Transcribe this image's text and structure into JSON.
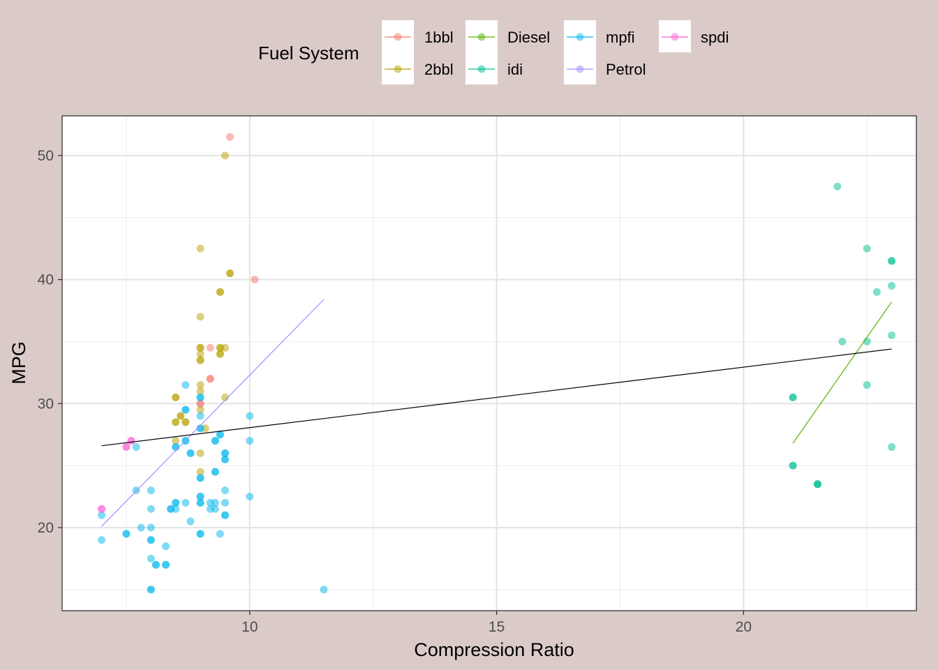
{
  "chart_data": {
    "type": "scatter",
    "xlabel": "Compression Ratio",
    "ylabel": "MPG",
    "xlim": [
      6.2,
      23.5
    ],
    "ylim": [
      13.3,
      53.2
    ],
    "xticks": [
      10,
      15,
      20
    ],
    "yticks": [
      20,
      30,
      40,
      50
    ],
    "grid": true,
    "legend": {
      "title": "Fuel System",
      "placement": "top",
      "entries": [
        {
          "label": "1bbl",
          "color": "#F8766D",
          "marker": "point+line"
        },
        {
          "label": "2bbl",
          "color": "#B79F00",
          "marker": "point+line"
        },
        {
          "label": "Diesel",
          "color": "#53B400",
          "marker": "point+line"
        },
        {
          "label": "idi",
          "color": "#00C094",
          "marker": "point+line"
        },
        {
          "label": "mpfi",
          "color": "#00B6EB",
          "marker": "point+line"
        },
        {
          "label": "Petrol",
          "color": "#A58AFF",
          "marker": "point+line"
        },
        {
          "label": "spdi",
          "color": "#FB61D7",
          "marker": "point+line"
        }
      ]
    },
    "series": [
      {
        "name": "1bbl",
        "color": "#F8766D",
        "points": [
          [
            9.6,
            51.5
          ],
          [
            10.1,
            40
          ],
          [
            9.2,
            34.5
          ],
          [
            9.2,
            32
          ],
          [
            9.2,
            32
          ],
          [
            9.0,
            30
          ],
          [
            9.0,
            30
          ]
        ]
      },
      {
        "name": "2bbl",
        "color": "#B79F00",
        "points": [
          [
            9.5,
            50
          ],
          [
            9.0,
            42.5
          ],
          [
            9.6,
            40.5
          ],
          [
            9.6,
            40.5
          ],
          [
            9.4,
            39
          ],
          [
            9.4,
            39
          ],
          [
            9.0,
            37
          ],
          [
            9.0,
            34.5
          ],
          [
            9.0,
            34.5
          ],
          [
            9.4,
            34.5
          ],
          [
            9.5,
            34.5
          ],
          [
            9.4,
            34.5
          ],
          [
            9.0,
            34
          ],
          [
            9.4,
            34
          ],
          [
            9.4,
            34
          ],
          [
            9.0,
            33.5
          ],
          [
            9.0,
            33.5
          ],
          [
            9.0,
            31.5
          ],
          [
            9.0,
            31
          ],
          [
            8.5,
            30.5
          ],
          [
            8.5,
            30.5
          ],
          [
            9.5,
            30.5
          ],
          [
            9.0,
            29.5
          ],
          [
            8.6,
            29
          ],
          [
            8.6,
            29
          ],
          [
            8.5,
            28.5
          ],
          [
            8.5,
            28.5
          ],
          [
            8.7,
            28.5
          ],
          [
            8.7,
            28.5
          ],
          [
            9.1,
            28
          ],
          [
            8.5,
            27
          ],
          [
            9.0,
            26
          ],
          [
            9.0,
            24.5
          ]
        ]
      },
      {
        "name": "idi",
        "color": "#00C094",
        "points": [
          [
            21.9,
            47.5
          ],
          [
            22.5,
            42.5
          ],
          [
            23.0,
            41.5
          ],
          [
            23.0,
            41.5
          ],
          [
            23.0,
            39.5
          ],
          [
            22.7,
            39
          ],
          [
            23.0,
            35.5
          ],
          [
            22.0,
            35
          ],
          [
            22.5,
            35
          ],
          [
            22.5,
            31.5
          ],
          [
            21.0,
            30.5
          ],
          [
            21.0,
            30.5
          ],
          [
            23.0,
            26.5
          ],
          [
            21.0,
            25
          ],
          [
            21.0,
            25
          ],
          [
            21.5,
            23.5
          ],
          [
            21.5,
            23.5
          ],
          [
            21.5,
            23.5
          ]
        ]
      },
      {
        "name": "mpfi",
        "color": "#00B6EB",
        "points": [
          [
            8.7,
            31.5
          ],
          [
            8.7,
            29.5
          ],
          [
            8.7,
            29.5
          ],
          [
            9.0,
            30.5
          ],
          [
            9.0,
            30.5
          ],
          [
            9.0,
            29
          ],
          [
            10.0,
            29
          ],
          [
            9.0,
            28
          ],
          [
            9.0,
            28
          ],
          [
            9.4,
            27.5
          ],
          [
            9.4,
            27.5
          ],
          [
            9.3,
            27
          ],
          [
            9.3,
            27
          ],
          [
            8.7,
            27
          ],
          [
            8.7,
            27
          ],
          [
            10.0,
            27
          ],
          [
            7.7,
            26.5
          ],
          [
            8.5,
            26.5
          ],
          [
            8.5,
            26.5
          ],
          [
            8.8,
            26
          ],
          [
            8.8,
            26
          ],
          [
            9.5,
            26
          ],
          [
            9.5,
            26
          ],
          [
            9.5,
            25.5
          ],
          [
            9.5,
            25.5
          ],
          [
            9.3,
            24.5
          ],
          [
            9.3,
            24.5
          ],
          [
            9.0,
            24
          ],
          [
            9.0,
            24
          ],
          [
            7.7,
            23
          ],
          [
            8.0,
            23
          ],
          [
            9.5,
            23
          ],
          [
            9.0,
            22.5
          ],
          [
            9.0,
            22.5
          ],
          [
            10.0,
            22.5
          ],
          [
            8.5,
            22
          ],
          [
            8.5,
            22
          ],
          [
            8.7,
            22
          ],
          [
            9.0,
            22
          ],
          [
            9.0,
            22
          ],
          [
            9.2,
            22
          ],
          [
            9.3,
            22
          ],
          [
            9.5,
            22
          ],
          [
            8.0,
            21.5
          ],
          [
            8.4,
            21.5
          ],
          [
            8.4,
            21.5
          ],
          [
            8.5,
            21.5
          ],
          [
            9.2,
            21.5
          ],
          [
            9.3,
            21.5
          ],
          [
            7.0,
            21
          ],
          [
            9.5,
            21
          ],
          [
            9.5,
            21
          ],
          [
            8.8,
            20.5
          ],
          [
            7.8,
            20
          ],
          [
            8.0,
            20
          ],
          [
            7.5,
            19.5
          ],
          [
            7.5,
            19.5
          ],
          [
            9.0,
            19.5
          ],
          [
            9.0,
            19.5
          ],
          [
            9.4,
            19.5
          ],
          [
            7.0,
            19
          ],
          [
            8.0,
            19
          ],
          [
            8.0,
            19
          ],
          [
            8.3,
            18.5
          ],
          [
            8.0,
            17.5
          ],
          [
            8.1,
            17
          ],
          [
            8.1,
            17
          ],
          [
            8.3,
            17
          ],
          [
            8.3,
            17
          ],
          [
            8.0,
            15
          ],
          [
            8.0,
            15
          ],
          [
            11.5,
            15
          ]
        ]
      },
      {
        "name": "spdi",
        "color": "#FB61D7",
        "points": [
          [
            7.6,
            27
          ],
          [
            7.6,
            27
          ],
          [
            7.5,
            26.5
          ],
          [
            7.5,
            26.5
          ],
          [
            7.0,
            21.5
          ],
          [
            7.0,
            21.5
          ]
        ]
      }
    ],
    "trend_lines": [
      {
        "name": "Petrol",
        "color": "#A58AFF",
        "x": [
          7.0,
          11.5
        ],
        "y": [
          20.1,
          38.4
        ]
      },
      {
        "name": "Diesel",
        "color": "#53B400",
        "x": [
          21.0,
          23.0
        ],
        "y": [
          26.8,
          38.2
        ]
      },
      {
        "name": "Overall",
        "color": "#000000",
        "x": [
          7.0,
          23.0
        ],
        "y": [
          26.6,
          34.4
        ]
      }
    ]
  }
}
